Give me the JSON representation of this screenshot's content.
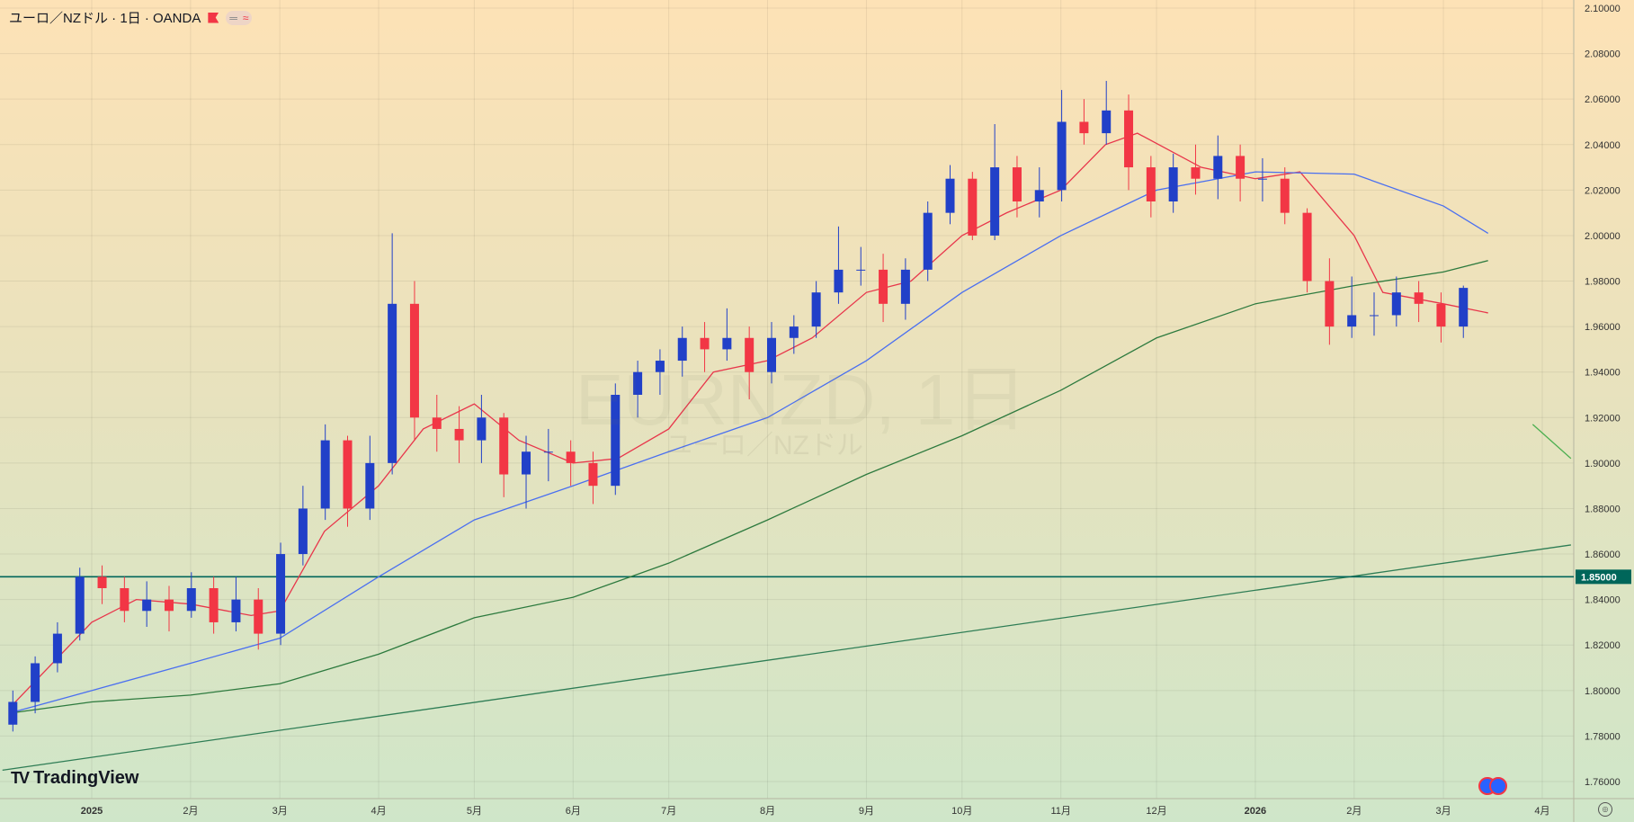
{
  "header": {
    "title": "ユーロ／NZドル · 1日 · OANDA",
    "pill_left": "═",
    "pill_right": "≈"
  },
  "watermark": {
    "symbol": "EURNZD, 1日",
    "name": "ユーロ／NZドル"
  },
  "logo": "TradingView",
  "colors": {
    "up": "#2140c8",
    "down": "#f23645",
    "ma_red": "#e8364b",
    "ma_blue": "#4a6ff0",
    "ma_green": "#2d7a3e",
    "trend": "#2e7d55",
    "hline": "#00665a"
  },
  "chart_data": {
    "type": "candlestick",
    "ylim": [
      1.75,
      2.1
    ],
    "y_ticks": [
      "2.10000",
      "2.08000",
      "2.06000",
      "2.04000",
      "2.02000",
      "2.00000",
      "1.98000",
      "1.96000",
      "1.94000",
      "1.92000",
      "1.90000",
      "1.88000",
      "1.86000",
      "1.84000",
      "1.82000",
      "1.80000",
      "1.78000",
      "1.76000"
    ],
    "x_ticks": [
      {
        "date": "2025-01-01",
        "label": "2025"
      },
      {
        "date": "2025-02-01",
        "label": "2月"
      },
      {
        "date": "2025-03-01",
        "label": "3月"
      },
      {
        "date": "2025-04-01",
        "label": "4月"
      },
      {
        "date": "2025-05-01",
        "label": "5月"
      },
      {
        "date": "2025-06-01",
        "label": "6月"
      },
      {
        "date": "2025-07-01",
        "label": "7月"
      },
      {
        "date": "2025-08-01",
        "label": "8月"
      },
      {
        "date": "2025-09-01",
        "label": "9月"
      },
      {
        "date": "2025-10-01",
        "label": "10月"
      },
      {
        "date": "2025-11-01",
        "label": "11月"
      },
      {
        "date": "2025-12-01",
        "label": "12月"
      },
      {
        "date": "2026-01-01",
        "label": "2026"
      },
      {
        "date": "2026-02-01",
        "label": "2月"
      },
      {
        "date": "2026-03-01",
        "label": "3月"
      },
      {
        "date": "2026-04-01",
        "label": "4月"
      }
    ],
    "price_label": "1.85000",
    "ohlc": [
      [
        "2024-12-05",
        1.785,
        1.8,
        1.782,
        1.795
      ],
      [
        "2024-12-12",
        1.795,
        1.815,
        1.79,
        1.812
      ],
      [
        "2024-12-19",
        1.812,
        1.83,
        1.808,
        1.825
      ],
      [
        "2024-12-26",
        1.825,
        1.854,
        1.822,
        1.85
      ],
      [
        "2025-01-02",
        1.85,
        1.855,
        1.838,
        1.845
      ],
      [
        "2025-01-09",
        1.845,
        1.85,
        1.83,
        1.835
      ],
      [
        "2025-01-16",
        1.835,
        1.848,
        1.828,
        1.84
      ],
      [
        "2025-01-23",
        1.84,
        1.846,
        1.826,
        1.835
      ],
      [
        "2025-01-30",
        1.835,
        1.852,
        1.832,
        1.845
      ],
      [
        "2025-02-06",
        1.845,
        1.85,
        1.825,
        1.83
      ],
      [
        "2025-02-13",
        1.83,
        1.85,
        1.826,
        1.84
      ],
      [
        "2025-02-20",
        1.84,
        1.845,
        1.818,
        1.825
      ],
      [
        "2025-02-27",
        1.825,
        1.865,
        1.82,
        1.86
      ],
      [
        "2025-03-06",
        1.86,
        1.89,
        1.855,
        1.88
      ],
      [
        "2025-03-13",
        1.88,
        1.917,
        1.875,
        1.91
      ],
      [
        "2025-03-20",
        1.91,
        1.912,
        1.872,
        1.88
      ],
      [
        "2025-03-27",
        1.88,
        1.912,
        1.875,
        1.9
      ],
      [
        "2025-04-03",
        1.9,
        2.001,
        1.895,
        1.97
      ],
      [
        "2025-04-10",
        1.97,
        1.98,
        1.91,
        1.92
      ],
      [
        "2025-04-17",
        1.92,
        1.93,
        1.905,
        1.915
      ],
      [
        "2025-04-24",
        1.915,
        1.925,
        1.9,
        1.91
      ],
      [
        "2025-05-01",
        1.91,
        1.93,
        1.9,
        1.92
      ],
      [
        "2025-05-08",
        1.92,
        1.922,
        1.885,
        1.895
      ],
      [
        "2025-05-15",
        1.895,
        1.912,
        1.88,
        1.905
      ],
      [
        "2025-05-22",
        1.905,
        1.915,
        1.892,
        1.905
      ],
      [
        "2025-05-29",
        1.905,
        1.91,
        1.89,
        1.9
      ],
      [
        "2025-06-05",
        1.9,
        1.905,
        1.882,
        1.89
      ],
      [
        "2025-06-12",
        1.89,
        1.935,
        1.886,
        1.93
      ],
      [
        "2025-06-19",
        1.93,
        1.945,
        1.92,
        1.94
      ],
      [
        "2025-06-26",
        1.94,
        1.95,
        1.93,
        1.945
      ],
      [
        "2025-07-03",
        1.945,
        1.96,
        1.938,
        1.955
      ],
      [
        "2025-07-10",
        1.955,
        1.962,
        1.94,
        1.95
      ],
      [
        "2025-07-17",
        1.95,
        1.968,
        1.945,
        1.955
      ],
      [
        "2025-07-24",
        1.955,
        1.96,
        1.928,
        1.94
      ],
      [
        "2025-07-31",
        1.94,
        1.962,
        1.935,
        1.955
      ],
      [
        "2025-08-07",
        1.955,
        1.965,
        1.948,
        1.96
      ],
      [
        "2025-08-14",
        1.96,
        1.98,
        1.955,
        1.975
      ],
      [
        "2025-08-21",
        1.975,
        2.004,
        1.97,
        1.985
      ],
      [
        "2025-08-28",
        1.985,
        1.995,
        1.978,
        1.985
      ],
      [
        "2025-09-04",
        1.985,
        1.992,
        1.962,
        1.97
      ],
      [
        "2025-09-11",
        1.97,
        1.99,
        1.963,
        1.985
      ],
      [
        "2025-09-18",
        1.985,
        2.015,
        1.98,
        2.01
      ],
      [
        "2025-09-25",
        2.01,
        2.031,
        2.005,
        2.025
      ],
      [
        "2025-10-02",
        2.025,
        2.028,
        1.998,
        2.0
      ],
      [
        "2025-10-09",
        2.0,
        2.049,
        1.998,
        2.03
      ],
      [
        "2025-10-16",
        2.03,
        2.035,
        2.008,
        2.015
      ],
      [
        "2025-10-23",
        2.015,
        2.03,
        2.008,
        2.02
      ],
      [
        "2025-10-30",
        2.02,
        2.064,
        2.015,
        2.05
      ],
      [
        "2025-11-06",
        2.05,
        2.06,
        2.04,
        2.045
      ],
      [
        "2025-11-13",
        2.045,
        2.068,
        2.04,
        2.055
      ],
      [
        "2025-11-20",
        2.055,
        2.062,
        2.02,
        2.03
      ],
      [
        "2025-11-27",
        2.03,
        2.035,
        2.008,
        2.015
      ],
      [
        "2025-12-04",
        2.015,
        2.036,
        2.01,
        2.03
      ],
      [
        "2025-12-11",
        2.03,
        2.04,
        2.018,
        2.025
      ],
      [
        "2025-12-18",
        2.025,
        2.044,
        2.016,
        2.035
      ],
      [
        "2025-12-25",
        2.035,
        2.04,
        2.015,
        2.025
      ],
      [
        "2026-01-01",
        2.025,
        2.034,
        2.015,
        2.025
      ],
      [
        "2026-01-08",
        2.025,
        2.03,
        2.005,
        2.01
      ],
      [
        "2026-01-15",
        2.01,
        2.012,
        1.975,
        1.98
      ],
      [
        "2026-01-22",
        1.98,
        1.99,
        1.952,
        1.96
      ],
      [
        "2026-01-29",
        1.96,
        1.982,
        1.955,
        1.965
      ],
      [
        "2026-02-05",
        1.965,
        1.975,
        1.956,
        1.965
      ],
      [
        "2026-02-12",
        1.965,
        1.982,
        1.96,
        1.975
      ],
      [
        "2026-02-19",
        1.975,
        1.98,
        1.962,
        1.97
      ],
      [
        "2026-02-26",
        1.97,
        1.975,
        1.953,
        1.96
      ],
      [
        "2026-03-05",
        1.96,
        1.978,
        1.955,
        1.977
      ]
    ],
    "lines": [
      {
        "color": "#e8364b",
        "points": [
          [
            "2024-12-06",
            1.792
          ],
          [
            "2025-01-01",
            1.83
          ],
          [
            "2025-01-15",
            1.84
          ],
          [
            "2025-02-01",
            1.838
          ],
          [
            "2025-02-20",
            1.833
          ],
          [
            "2025-03-01",
            1.835
          ],
          [
            "2025-03-15",
            1.87
          ],
          [
            "2025-04-01",
            1.89
          ],
          [
            "2025-04-15",
            1.915
          ],
          [
            "2025-05-01",
            1.926
          ],
          [
            "2025-05-15",
            1.91
          ],
          [
            "2025-06-01",
            1.9
          ],
          [
            "2025-06-15",
            1.902
          ],
          [
            "2025-07-01",
            1.915
          ],
          [
            "2025-07-15",
            1.94
          ],
          [
            "2025-08-01",
            1.945
          ],
          [
            "2025-08-15",
            1.955
          ],
          [
            "2025-09-01",
            1.975
          ],
          [
            "2025-09-15",
            1.98
          ],
          [
            "2025-10-01",
            2.0
          ],
          [
            "2025-10-15",
            2.01
          ],
          [
            "2025-11-01",
            2.02
          ],
          [
            "2025-11-15",
            2.04
          ],
          [
            "2025-11-25",
            2.045
          ],
          [
            "2025-12-15",
            2.03
          ],
          [
            "2026-01-01",
            2.025
          ],
          [
            "2026-01-15",
            2.028
          ],
          [
            "2026-02-01",
            2.0
          ],
          [
            "2026-02-10",
            1.975
          ],
          [
            "2026-03-01",
            1.97
          ],
          [
            "2026-03-15",
            1.966
          ]
        ]
      },
      {
        "color": "#4a6ff0",
        "points": [
          [
            "2024-12-06",
            1.79
          ],
          [
            "2025-01-01",
            1.8
          ],
          [
            "2025-02-01",
            1.812
          ],
          [
            "2025-03-01",
            1.823
          ],
          [
            "2025-04-01",
            1.85
          ],
          [
            "2025-05-01",
            1.875
          ],
          [
            "2025-06-01",
            1.89
          ],
          [
            "2025-07-01",
            1.905
          ],
          [
            "2025-08-01",
            1.92
          ],
          [
            "2025-09-01",
            1.945
          ],
          [
            "2025-10-01",
            1.975
          ],
          [
            "2025-11-01",
            2.0
          ],
          [
            "2025-12-01",
            2.02
          ],
          [
            "2026-01-01",
            2.028
          ],
          [
            "2026-02-01",
            2.027
          ],
          [
            "2026-03-01",
            2.013
          ],
          [
            "2026-03-15",
            2.001
          ]
        ]
      },
      {
        "color": "#2d7a3e",
        "points": [
          [
            "2024-12-06",
            1.79
          ],
          [
            "2025-01-01",
            1.795
          ],
          [
            "2025-02-01",
            1.798
          ],
          [
            "2025-03-01",
            1.803
          ],
          [
            "2025-04-01",
            1.816
          ],
          [
            "2025-05-01",
            1.832
          ],
          [
            "2025-06-01",
            1.841
          ],
          [
            "2025-07-01",
            1.856
          ],
          [
            "2025-08-01",
            1.875
          ],
          [
            "2025-09-01",
            1.895
          ],
          [
            "2025-10-01",
            1.912
          ],
          [
            "2025-11-01",
            1.932
          ],
          [
            "2025-12-01",
            1.955
          ],
          [
            "2026-01-01",
            1.97
          ],
          [
            "2026-02-01",
            1.978
          ],
          [
            "2026-03-01",
            1.984
          ],
          [
            "2026-03-15",
            1.989
          ]
        ]
      }
    ],
    "trendlines": [
      {
        "color": "#2e7d55",
        "from": [
          "2024-12-04",
          1.765
        ],
        "to": [
          "2026-04-10",
          1.864
        ]
      },
      {
        "color": "#4caf50",
        "from": [
          "2026-03-29",
          1.917
        ],
        "to": [
          "2026-04-10",
          1.902
        ]
      }
    ],
    "hline": {
      "value": 1.85,
      "color": "#00665a"
    }
  }
}
